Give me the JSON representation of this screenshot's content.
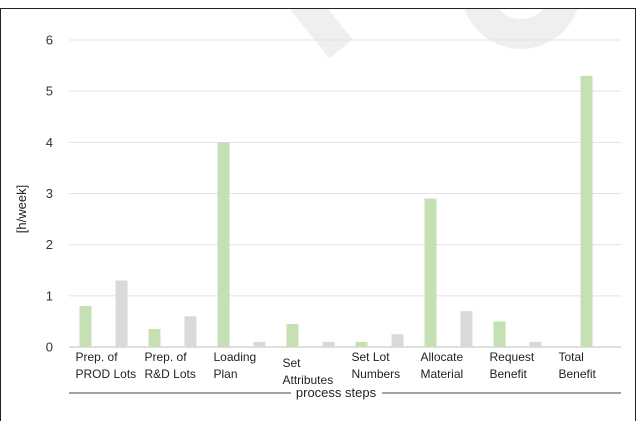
{
  "chart_data": {
    "type": "bar",
    "ylabel": "[h/week]",
    "xlabel": "process steps",
    "ylim": [
      0,
      6
    ],
    "yticks": [
      0,
      1,
      2,
      3,
      4,
      5,
      6
    ],
    "grid": true,
    "categories": [
      [
        "Prep. of",
        "PROD Lots"
      ],
      [
        "Prep. of",
        "R&D Lots"
      ],
      [
        "Loading",
        "Plan"
      ],
      [
        "Set",
        "Attributes"
      ],
      [
        "Set Lot",
        "Numbers"
      ],
      [
        "Allocate",
        "Material"
      ],
      [
        "Request",
        "Benefit"
      ],
      [
        "Total",
        "Benefit"
      ]
    ],
    "series": [
      {
        "color": "#c5e0b3",
        "values": [
          0.8,
          0.35,
          4.0,
          0.45,
          0.1,
          2.9,
          0.5,
          5.3
        ]
      },
      {
        "color": "#d9d9d9",
        "values": [
          1.3,
          0.6,
          0.1,
          0.1,
          0.25,
          0.7,
          0.1,
          null
        ]
      }
    ]
  }
}
